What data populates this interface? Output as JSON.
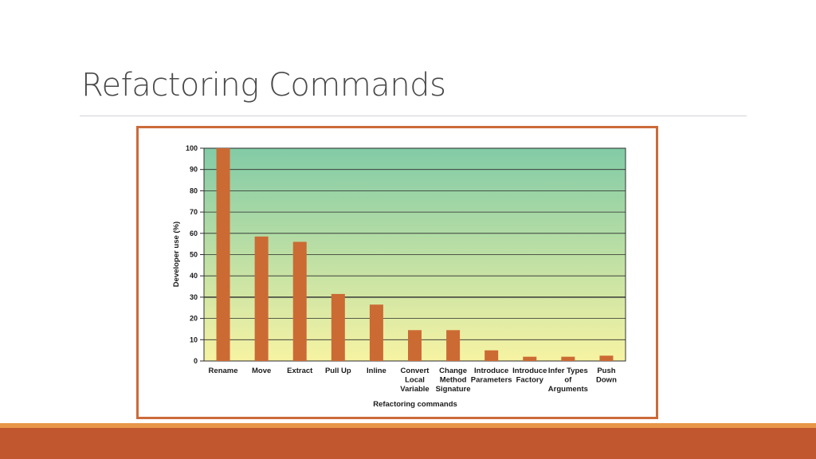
{
  "slide": {
    "title": "Refactoring Commands"
  },
  "colors": {
    "bar": "#cc6a34",
    "frame": "#cc6a3a",
    "plot_top": "#82cba6",
    "plot_bottom": "#f7f3a3",
    "footer": "#c0572e",
    "footer_stripe": "#e8964a"
  },
  "chart_data": {
    "type": "bar",
    "categories": [
      "Rename",
      "Move",
      "Extract",
      "Pull Up",
      "Inline",
      "Convert Local Variable",
      "Change Method Signature",
      "Introduce Parameters",
      "Introduce Factory",
      "Infer Types of Arguments",
      "Push Down"
    ],
    "category_lines": [
      [
        "Rename"
      ],
      [
        "Move"
      ],
      [
        "Extract"
      ],
      [
        "Pull Up"
      ],
      [
        "Inline"
      ],
      [
        "Convert",
        "Local",
        "Variable"
      ],
      [
        "Change",
        "Method",
        "Signature"
      ],
      [
        "Introduce",
        "Parameters"
      ],
      [
        "Introduce",
        "Factory"
      ],
      [
        "Infer Types",
        "of",
        "Arguments"
      ],
      [
        "Push",
        "Down"
      ]
    ],
    "values": [
      100,
      58.5,
      56,
      31.5,
      26.5,
      14.5,
      14.5,
      5,
      2,
      2,
      2.5
    ],
    "xlabel": "Refactoring commands",
    "ylabel": "Developer use (%)",
    "ylim": [
      0,
      100
    ],
    "yticks": [
      0,
      10,
      20,
      30,
      40,
      50,
      60,
      70,
      80,
      90,
      100
    ],
    "grid": true,
    "legend": "none"
  }
}
